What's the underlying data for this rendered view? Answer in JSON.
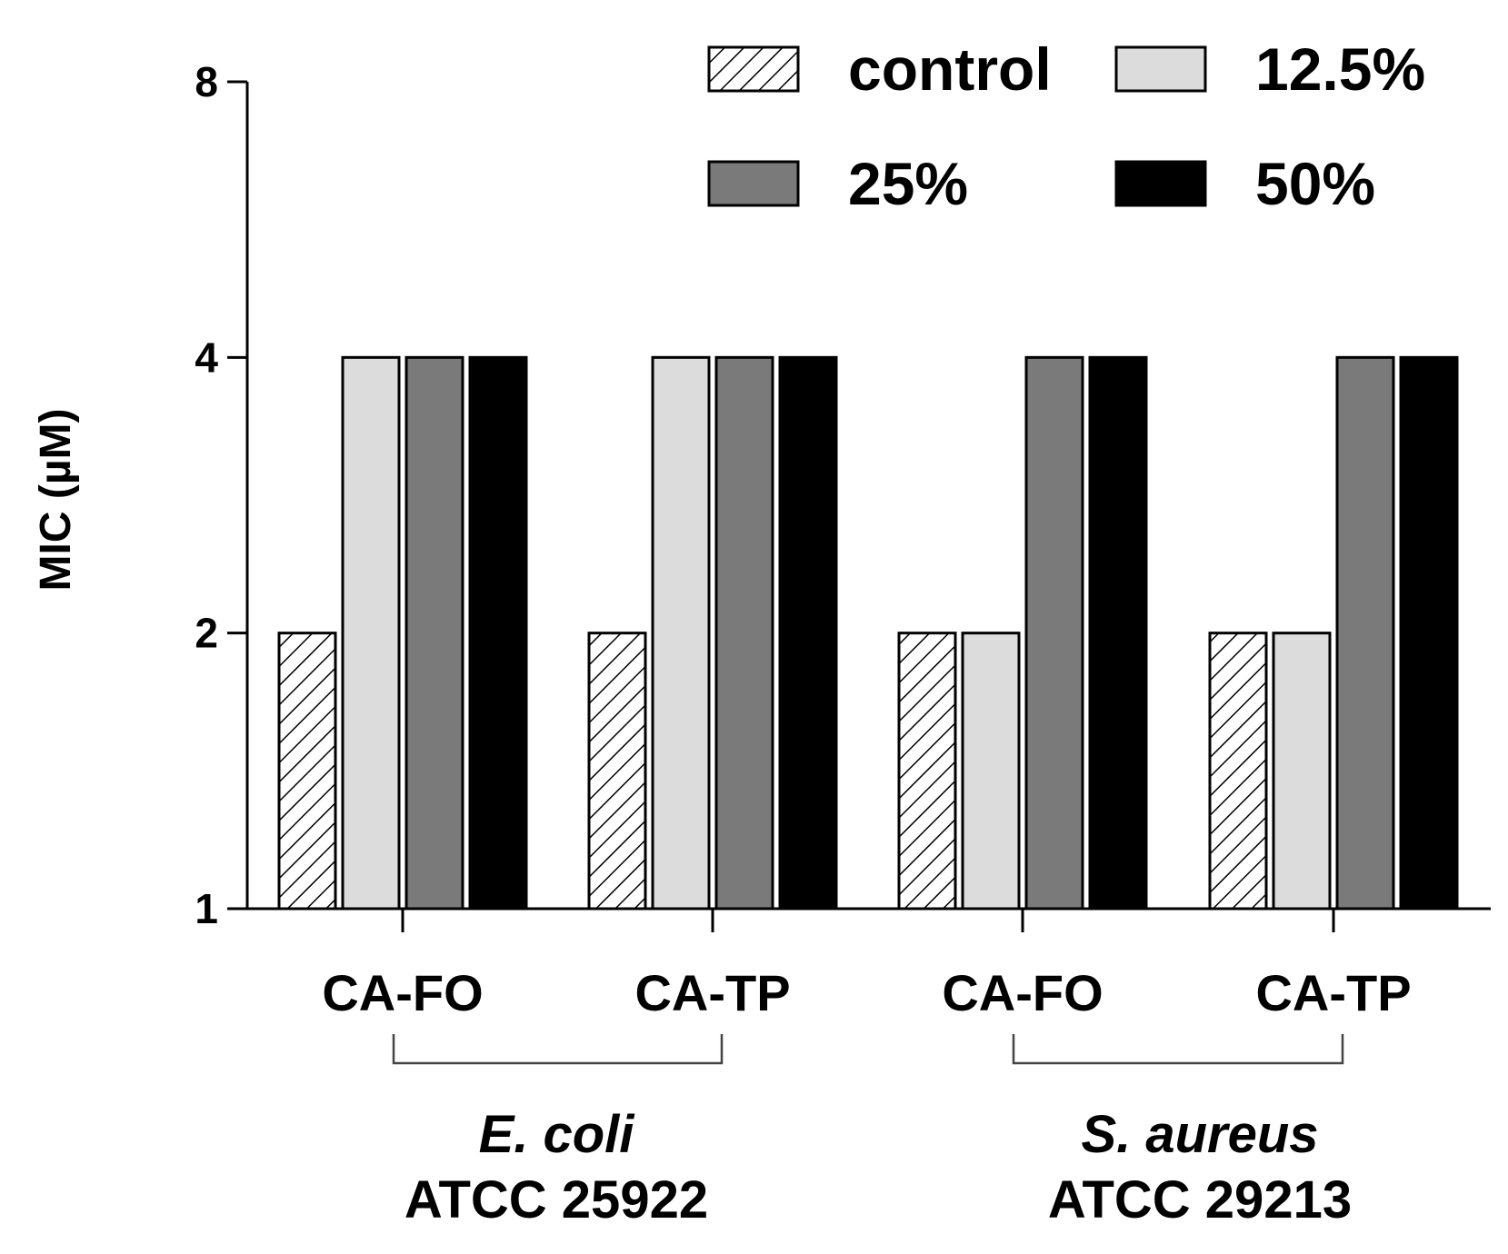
{
  "chart_data": {
    "type": "bar",
    "ylabel": "MIC (µM)",
    "yscale": "log2",
    "ylim": [
      1,
      8
    ],
    "yticks": [
      1,
      2,
      4,
      8
    ],
    "categories": [
      "CA-FO",
      "CA-TP",
      "CA-FO",
      "CA-TP"
    ],
    "groups": [
      {
        "name": "E. coli",
        "strain": "ATCC 25922",
        "categories": [
          0,
          1
        ]
      },
      {
        "name": "S. aureus",
        "strain": "ATCC 29213",
        "categories": [
          2,
          3
        ]
      }
    ],
    "series": [
      {
        "name": "control",
        "fill": "hatch",
        "values": [
          2,
          2,
          2,
          2
        ]
      },
      {
        "name": "12.5%",
        "color": "#dcdcdc",
        "values": [
          4,
          4,
          2,
          2
        ]
      },
      {
        "name": "25%",
        "color": "#7a7a7a",
        "values": [
          4,
          4,
          4,
          4
        ]
      },
      {
        "name": "50%",
        "color": "#000000",
        "values": [
          4,
          4,
          4,
          4
        ]
      }
    ],
    "legend_position": "top-right",
    "grid": false
  }
}
